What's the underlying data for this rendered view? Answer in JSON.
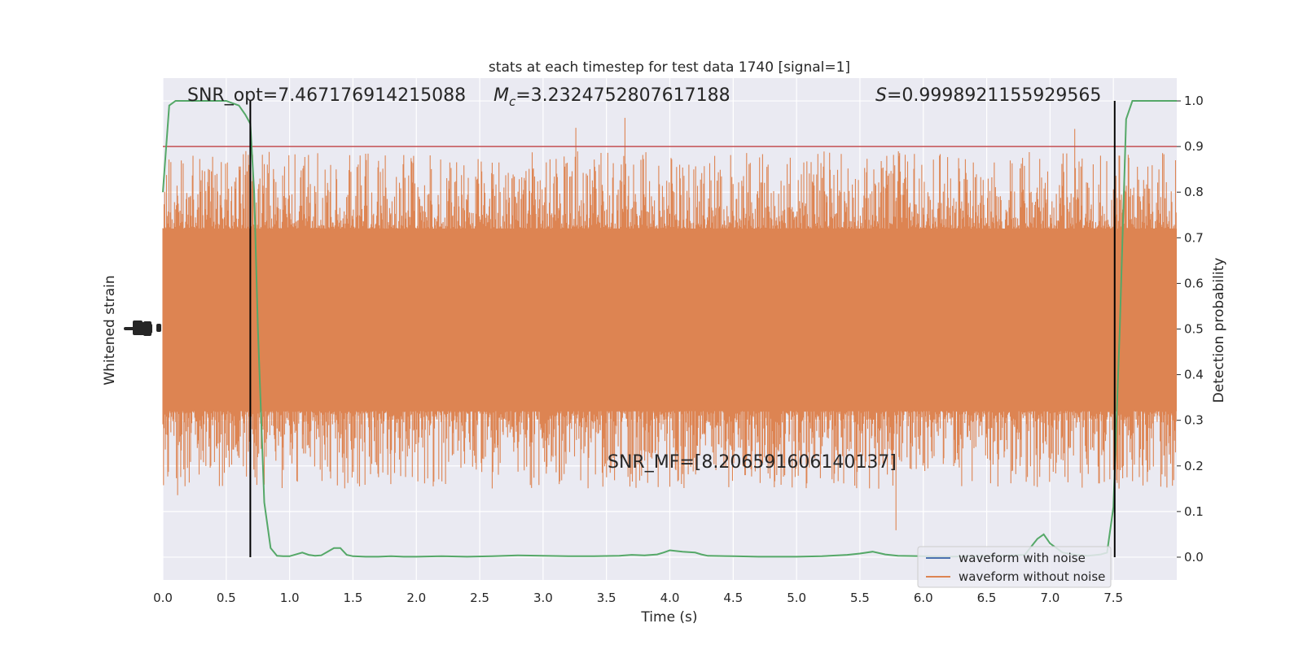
{
  "chart_data": {
    "type": "line",
    "title": "stats at each timestep for test data 1740 [signal=1]",
    "xlabel": "Time (s)",
    "ylabel_left": "Whitened strain",
    "ylabel_right": "Detection probability",
    "xlim": [
      0.0,
      8.0
    ],
    "ylim_right": [
      -0.05,
      1.05
    ],
    "x_ticks": [
      "0.0",
      "0.5",
      "1.0",
      "1.5",
      "2.0",
      "2.5",
      "3.0",
      "3.5",
      "4.0",
      "4.5",
      "5.0",
      "5.5",
      "6.0",
      "6.5",
      "7.0",
      "7.5"
    ],
    "y_ticks_right": [
      "0.0",
      "0.1",
      "0.2",
      "0.3",
      "0.4",
      "0.5",
      "0.6",
      "0.7",
      "0.8",
      "0.9",
      "1.0"
    ],
    "grid": true,
    "legend_position": "bottom-right",
    "annotations": {
      "snr_opt": "SNR_opt=7.467176914215088",
      "mc_symbol": "M",
      "mc_subscript": "c",
      "mc_value": "=3.2324752807617188",
      "s_symbol": "S",
      "s_value": "=0.9998921155929565",
      "snr_mf": "SNR_MF=[8.206591606140137]"
    },
    "threshold": 0.9,
    "vlines_x": [
      0.69,
      7.51
    ],
    "series": [
      {
        "name": "waveform with noise",
        "color": "#4c72b0",
        "kind": "strain"
      },
      {
        "name": "waveform without noise",
        "color": "#dd8452",
        "kind": "strain",
        "envelope": {
          "core_band": [
            0.32,
            0.72
          ],
          "peak_range": [
            0.03,
            1.0
          ]
        }
      },
      {
        "name": "detection probability",
        "color": "#55a868",
        "x": [
          0.0,
          0.05,
          0.1,
          0.2,
          0.3,
          0.4,
          0.5,
          0.55,
          0.6,
          0.65,
          0.69,
          0.72,
          0.75,
          0.8,
          0.85,
          0.9,
          0.95,
          1.0,
          1.1,
          1.15,
          1.2,
          1.25,
          1.3,
          1.35,
          1.4,
          1.45,
          1.5,
          1.6,
          1.7,
          1.8,
          1.9,
          2.0,
          2.2,
          2.4,
          2.6,
          2.8,
          3.0,
          3.2,
          3.4,
          3.6,
          3.7,
          3.8,
          3.9,
          3.95,
          4.0,
          4.1,
          4.2,
          4.25,
          4.3,
          4.5,
          4.7,
          5.0,
          5.2,
          5.4,
          5.5,
          5.6,
          5.7,
          5.8,
          6.0,
          6.2,
          6.4,
          6.6,
          6.8,
          6.9,
          6.95,
          7.0,
          7.1,
          7.2,
          7.3,
          7.4,
          7.45,
          7.5,
          7.55,
          7.6,
          7.65,
          7.7,
          8.0
        ],
        "values": [
          0.8,
          0.99,
          1.0,
          1.0,
          1.0,
          1.0,
          1.0,
          0.995,
          0.99,
          0.97,
          0.95,
          0.8,
          0.5,
          0.12,
          0.02,
          0.003,
          0.002,
          0.002,
          0.01,
          0.005,
          0.003,
          0.004,
          0.012,
          0.02,
          0.02,
          0.005,
          0.002,
          0.001,
          0.001,
          0.002,
          0.001,
          0.001,
          0.002,
          0.001,
          0.002,
          0.004,
          0.003,
          0.002,
          0.002,
          0.003,
          0.005,
          0.004,
          0.006,
          0.01,
          0.015,
          0.012,
          0.01,
          0.006,
          0.003,
          0.002,
          0.001,
          0.001,
          0.002,
          0.005,
          0.008,
          0.012,
          0.006,
          0.003,
          0.002,
          0.001,
          0.002,
          0.003,
          0.005,
          0.04,
          0.05,
          0.03,
          0.01,
          0.005,
          0.003,
          0.006,
          0.01,
          0.11,
          0.5,
          0.96,
          1.0,
          1.0,
          1.0
        ]
      }
    ]
  }
}
